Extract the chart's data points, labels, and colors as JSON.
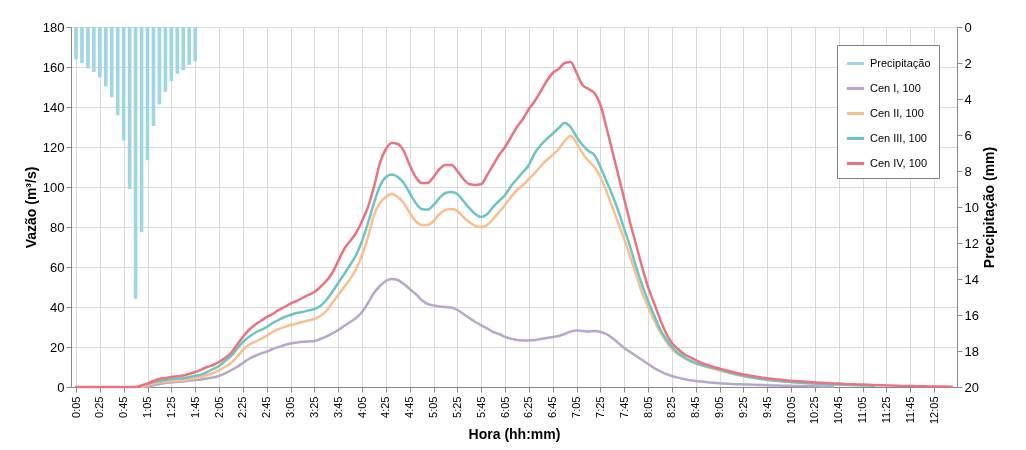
{
  "chart_data": {
    "type": "line",
    "xlabel": "Hora (hh:mm)",
    "ylabel": "Vazão (m³/s)",
    "y2label": "Precipitação (mm)",
    "categories": [
      "0:05",
      null,
      null,
      null,
      "0:25",
      null,
      null,
      null,
      "0:45",
      null,
      null,
      null,
      "1:05",
      null,
      null,
      null,
      "1:25",
      null,
      null,
      null,
      "1:45",
      null,
      null,
      null,
      "2:05",
      null,
      null,
      null,
      "2:25",
      null,
      null,
      null,
      "2:45",
      null,
      null,
      null,
      "3:05",
      null,
      null,
      null,
      "3:25",
      null,
      null,
      null,
      "3:45",
      null,
      null,
      null,
      "4:05",
      null,
      null,
      null,
      "4:25",
      null,
      null,
      null,
      "4:45",
      null,
      null,
      null,
      "5:05",
      null,
      null,
      null,
      "5:25",
      null,
      null,
      null,
      "5:45",
      null,
      null,
      null,
      "6:05",
      null,
      null,
      null,
      "6:25",
      null,
      null,
      null,
      "6:45",
      null,
      null,
      null,
      "7:05",
      null,
      null,
      null,
      "7:25",
      null,
      null,
      null,
      "7:45",
      null,
      null,
      null,
      "8:05",
      null,
      null,
      null,
      "8:25",
      null,
      null,
      null,
      "8:45",
      null,
      null,
      null,
      "9:05",
      null,
      null,
      null,
      "9:25",
      null,
      null,
      null,
      "9:45",
      null,
      null,
      null,
      "10:05",
      null,
      null,
      null,
      "10:25",
      null,
      null,
      null,
      "10:45",
      null,
      null,
      null,
      "11:05",
      null,
      null,
      null,
      "11:25",
      null,
      null,
      null,
      "11:45",
      null,
      null,
      null,
      "12:05",
      null,
      null,
      null
    ],
    "series": [
      {
        "name": "Precipitação",
        "type": "bar",
        "axis": "y2",
        "color": "#9fd6e2",
        "values": [
          1.8,
          2.0,
          2.3,
          2.5,
          2.8,
          3.3,
          3.9,
          4.9,
          6.3,
          9.0,
          15.1,
          11.4,
          7.4,
          5.5,
          4.3,
          3.6,
          3.0,
          2.6,
          2.4,
          2.1,
          1.9,
          null,
          null,
          null,
          null,
          null,
          null,
          null,
          null,
          null,
          null,
          null,
          null,
          null,
          null,
          null,
          null,
          null,
          null,
          null,
          null,
          null,
          null,
          null,
          null,
          null,
          null,
          null,
          null,
          null,
          null,
          null,
          null,
          null,
          null,
          null,
          null,
          null,
          null,
          null,
          null,
          null,
          null,
          null,
          null,
          null,
          null,
          null,
          null,
          null,
          null,
          null,
          null,
          null,
          null,
          null,
          null,
          null,
          null,
          null,
          null,
          null,
          null,
          null,
          null,
          null,
          null,
          null,
          null,
          null,
          null,
          null,
          null,
          null,
          null,
          null,
          null,
          null,
          null,
          null,
          null,
          null,
          null,
          null,
          null,
          null,
          null,
          null,
          null,
          null,
          null,
          null,
          null,
          null,
          null,
          null,
          null,
          null,
          null,
          null,
          null,
          null,
          null,
          null,
          null,
          null,
          null,
          null,
          null,
          null,
          null,
          null,
          null,
          null,
          null,
          null,
          null,
          null,
          null,
          null,
          null,
          null,
          null,
          null,
          null,
          null,
          null,
          null
        ]
      },
      {
        "name": "Cen I, 100",
        "color": "#b7a7cd",
        "values": [
          null,
          null,
          null,
          null,
          null,
          null,
          null,
          null,
          null,
          null,
          null,
          null,
          0,
          0.8,
          1.5,
          2,
          2.3,
          2.6,
          2.8,
          3.2,
          3.5,
          3.8,
          4.3,
          4.8,
          5.5,
          6.8,
          8.3,
          10,
          12,
          14,
          15.5,
          16.7,
          17.7,
          19,
          20,
          21,
          21.7,
          22.2,
          22.6,
          22.8,
          23,
          24,
          25.2,
          26.8,
          28.5,
          30.5,
          32.5,
          34.5,
          37.5,
          42,
          47,
          50.5,
          53,
          54,
          53.5,
          51.5,
          49,
          46.5,
          43.5,
          41.5,
          40.8,
          40.3,
          40,
          39.7,
          38.5,
          36.5,
          34.5,
          32.5,
          30.8,
          29.3,
          27.5,
          26.5,
          25,
          24.2,
          23.5,
          23.3,
          23.3,
          23.5,
          24,
          24.5,
          25,
          25.5,
          26.5,
          27.7,
          28.3,
          28,
          27.7,
          28,
          27.5,
          26.5,
          24.5,
          22,
          19.5,
          17.5,
          15.5,
          13.5,
          11.5,
          9.5,
          8,
          6.5,
          5.5,
          4.7,
          4,
          3.4,
          3,
          2.7,
          2.4,
          2.1,
          1.9,
          1.7,
          1.5,
          1.4,
          1.3,
          1.2,
          1.1,
          1,
          0.9,
          0.8,
          0.7,
          0.6,
          0.6,
          0.5,
          0.5,
          0.4,
          0.4,
          0.3,
          0.3,
          0.3,
          null,
          null,
          null,
          null,
          null,
          null,
          null,
          null,
          null,
          null,
          null,
          null,
          null,
          null,
          null,
          null,
          null,
          null,
          null,
          null
        ]
      },
      {
        "name": "Cen II, 100",
        "color": "#f9c08e",
        "values": [
          null,
          null,
          null,
          null,
          null,
          null,
          null,
          null,
          null,
          null,
          null,
          0,
          0.8,
          1.7,
          2.2,
          2.6,
          3,
          3.2,
          3.4,
          4,
          4.5,
          5,
          6,
          7,
          8.5,
          10,
          12,
          15,
          18.5,
          21,
          22.5,
          24,
          25.5,
          27.5,
          29,
          30,
          31,
          31.7,
          32.5,
          33.3,
          34,
          35.5,
          38,
          42,
          46,
          50,
          54,
          59,
          66,
          75,
          86,
          92,
          95,
          96.5,
          95,
          92,
          87,
          83,
          81,
          81,
          83,
          86.5,
          88.5,
          89,
          88,
          85,
          82.5,
          80.5,
          80,
          81,
          84,
          87.5,
          91,
          95,
          98.5,
          101,
          104,
          107,
          110.5,
          113.5,
          116,
          119,
          123,
          125.5,
          122,
          117,
          113,
          110,
          105,
          98,
          90,
          82,
          74,
          65,
          56,
          47,
          40,
          33.5,
          27.5,
          23,
          19,
          16.5,
          14.5,
          13,
          11.8,
          10.8,
          9.9,
          9.1,
          8.3,
          7.5,
          6.8,
          6,
          5.4,
          4.9,
          4.4,
          4,
          3.6,
          3.3,
          3,
          2.7,
          2.5,
          2.3,
          2.1,
          1.9,
          1.7,
          1.6,
          null,
          null,
          null,
          null,
          null,
          null,
          null,
          null,
          null,
          null,
          null,
          null,
          null,
          null,
          null,
          null,
          null,
          null,
          null,
          null,
          null,
          null
        ]
      },
      {
        "name": "Cen III, 100",
        "color": "#6cc4c4",
        "values": [
          null,
          null,
          null,
          null,
          null,
          null,
          null,
          null,
          null,
          null,
          null,
          null,
          1.5,
          2.5,
          3,
          3.5,
          3.9,
          4.2,
          4.4,
          5,
          5.6,
          6.2,
          7.5,
          9,
          10.5,
          13,
          15.5,
          19,
          22.5,
          25,
          27,
          28.5,
          30,
          32,
          33.5,
          35,
          36,
          37,
          37.5,
          38.3,
          39,
          40.5,
          43.5,
          47.5,
          52,
          56.5,
          61,
          66,
          73,
          82,
          92,
          100.5,
          105,
          106.3,
          105,
          102,
          97,
          92,
          89,
          88.7,
          91,
          94.5,
          97,
          97.5,
          96.5,
          93,
          89.5,
          86.5,
          85,
          86.5,
          90,
          93,
          96,
          100.5,
          104,
          107.5,
          111,
          117,
          121,
          124,
          126.7,
          129.5,
          132,
          130,
          125,
          121,
          118,
          116,
          110,
          103,
          96,
          88,
          79,
          70,
          60,
          51,
          43,
          36,
          29,
          24,
          20,
          17,
          15,
          13.3,
          12,
          11,
          10.2,
          9.5,
          8.7,
          7.8,
          7,
          6.2,
          5.6,
          5,
          4.5,
          4,
          3.6,
          3.3,
          3,
          2.7,
          2.5,
          2.3,
          2.1,
          1.9,
          1.7,
          1.6,
          1.5,
          1.3,
          1.2,
          1.1,
          1,
          0.9,
          0.8,
          0.7,
          0.6,
          null,
          null,
          null,
          null,
          null,
          null,
          null,
          null,
          null,
          null,
          null,
          null,
          null
        ]
      },
      {
        "name": "Cen IV, 100",
        "color": "#e9737f",
        "values": [
          0,
          0,
          0,
          0,
          0,
          0,
          0,
          0,
          0,
          0,
          0,
          0.8,
          1.7,
          3,
          4,
          4.5,
          5,
          5.4,
          5.8,
          6.6,
          7.5,
          8.7,
          10,
          11,
          12.5,
          14.5,
          17,
          21,
          25,
          28.5,
          31,
          33,
          35,
          36.5,
          38.5,
          40,
          41.7,
          43,
          44.5,
          46,
          47.5,
          50,
          53,
          57,
          63,
          69,
          73,
          77,
          83,
          90,
          100,
          112,
          119,
          122,
          121.5,
          118,
          111,
          105,
          102,
          102,
          105,
          109,
          111,
          111,
          108,
          104,
          101.5,
          101,
          101.5,
          106,
          111,
          116,
          120,
          125,
          130,
          134,
          139,
          143,
          148,
          153,
          157,
          159,
          162,
          162.5,
          157,
          151,
          149,
          147,
          141,
          130,
          118,
          106,
          94,
          82,
          71,
          60,
          50,
          42,
          34,
          27,
          22,
          19,
          16.5,
          15,
          13.5,
          12,
          11,
          10,
          9.2,
          8.4,
          7.6,
          6.9,
          6.3,
          5.8,
          5.3,
          4.8,
          4.4,
          4,
          3.7,
          3.4,
          3.1,
          2.9,
          2.7,
          2.5,
          2.3,
          2.1,
          2,
          1.8,
          1.7,
          1.5,
          1.4,
          1.3,
          1.2,
          1.1,
          1,
          0.9,
          0.8,
          0.7,
          0.6,
          0.5,
          0.5,
          0.4,
          0.4,
          0.3,
          0.3,
          0.2,
          0.2,
          0.1
        ]
      }
    ],
    "ylim": [
      0,
      180
    ],
    "yticks": [
      0,
      20,
      40,
      60,
      80,
      100,
      120,
      140,
      160,
      180
    ],
    "y2lim": [
      20,
      0
    ],
    "y2ticks": [
      0,
      2,
      4,
      6,
      8,
      10,
      12,
      14,
      16,
      18,
      20
    ],
    "grid": true,
    "legend": "top right",
    "line_style": "solid"
  }
}
